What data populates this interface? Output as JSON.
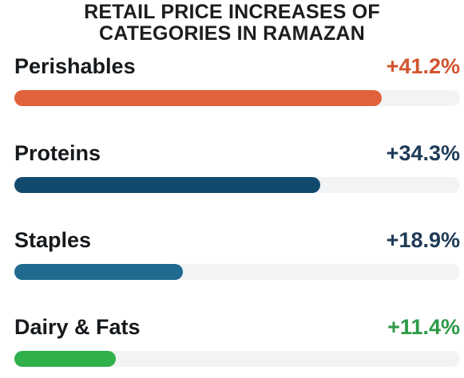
{
  "chart_data": {
    "type": "bar",
    "orientation": "horizontal",
    "title_lines": [
      "RETAIL PRICE INCREASES OF",
      "CATEGORIES IN RAMAZAN"
    ],
    "categories": [
      "Perishables",
      "Proteins",
      "Staples",
      "Dairy & Fats"
    ],
    "values": [
      41.2,
      34.3,
      18.9,
      11.4
    ],
    "value_labels": [
      "+41.2%",
      "+34.3%",
      "+18.9%",
      "+11.4%"
    ],
    "xlim": [
      0,
      50
    ],
    "colors": [
      "#e0623a",
      "#124a6e",
      "#1f6a8f",
      "#2fb04b"
    ],
    "label_colors": [
      "#d2542f",
      "#1f3b57",
      "#1f3b57",
      "#2c9a46"
    ],
    "track_color": "#f1f3f4",
    "grid": false,
    "legend": "none"
  }
}
